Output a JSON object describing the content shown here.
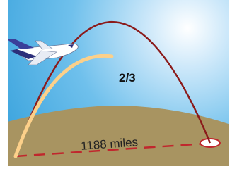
{
  "labels": {
    "fraction": "2/3",
    "distance": "1188 miles"
  }
}
